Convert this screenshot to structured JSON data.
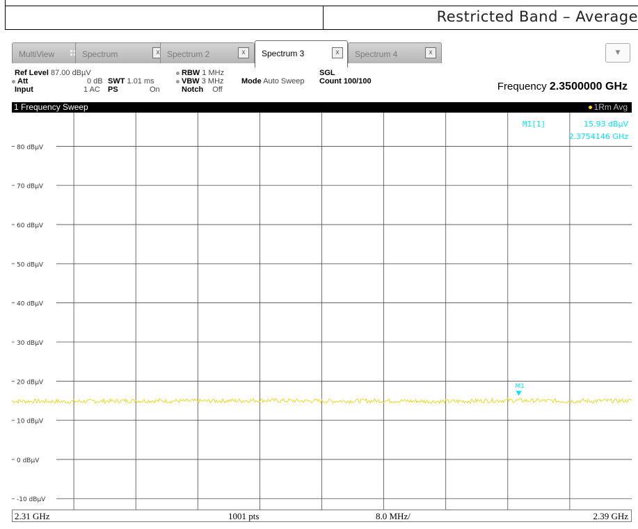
{
  "doc": {
    "title": "Restricted Band – Average"
  },
  "tabs": [
    {
      "label": "MultiView"
    },
    {
      "label": "Spectrum",
      "close": "x"
    },
    {
      "label": "Spectrum 2",
      "close": "x"
    },
    {
      "label": "Spectrum 3",
      "close": "x"
    },
    {
      "label": "Spectrum 4",
      "close": "x"
    }
  ],
  "dropdown": {
    "glyph": "▼"
  },
  "settings": {
    "ref_level_label": "Ref Level",
    "ref_level_value": "87.00 dBµV",
    "att_label": "Att",
    "att_value": "0 dB",
    "swt_label": "SWT",
    "swt_value": "1.01 ms",
    "input_label": "Input",
    "input_value": "1 AC",
    "ps_label": "PS",
    "ps_value": "On",
    "rbw_label": "RBW",
    "rbw_value": "1 MHz",
    "vbw_label": "VBW",
    "vbw_value": "3 MHz",
    "notch_label": "Notch",
    "notch_value": "Off",
    "mode_label": "Mode",
    "mode_value": "Auto Sweep",
    "sgl_label": "SGL",
    "count_label": "Count",
    "count_value": "100/100",
    "frequency_label": "Frequency",
    "frequency_value": "2.3500000 GHz"
  },
  "window": {
    "title": "1 Frequency Sweep",
    "trace_label": "1Rm Avg"
  },
  "marker": {
    "name": "M1[1]",
    "level": "15.93 dBµV",
    "freq": "2.3754146 GHz",
    "plot_label": "M1"
  },
  "bottom": {
    "start": "2.31 GHz",
    "points": "1001 pts",
    "span_per_div": "8.0 MHz/",
    "stop": "2.39 GHz"
  },
  "colors": {
    "trace": "#e6dc2a",
    "marker": "#00e5ff",
    "grid": "#4a4a4a",
    "window_bar": "#000000"
  },
  "chart_data": {
    "type": "line",
    "xlim": [
      2.31,
      2.39
    ],
    "ylim": [
      -12.8,
      88.6
    ],
    "x_unit": "GHz",
    "y_unit": "dBµV",
    "y_ticks": [
      80,
      70,
      60,
      50,
      40,
      30,
      20,
      10,
      0,
      -10
    ],
    "y_tick_labels": [
      "80 dBµV",
      "70 dBµV",
      "60 dBµV",
      "50 dBµV",
      "40 dBµV",
      "30 dBµV",
      "20 dBµV",
      "10 dBµV",
      "0 dBµV",
      "-10 dBµV"
    ],
    "x_divisions": 10,
    "grid": true,
    "series": [
      {
        "x": [
          2.31,
          2.318,
          2.326,
          2.334,
          2.342,
          2.35,
          2.358,
          2.366,
          2.374,
          2.382,
          2.39
        ],
        "values": [
          14.9,
          14.8,
          15.0,
          14.9,
          15.1,
          14.9,
          15.0,
          14.8,
          15.1,
          14.9,
          15.0
        ]
      }
    ],
    "markers": [
      {
        "x": 2.3754146,
        "y": 15.93
      }
    ]
  }
}
